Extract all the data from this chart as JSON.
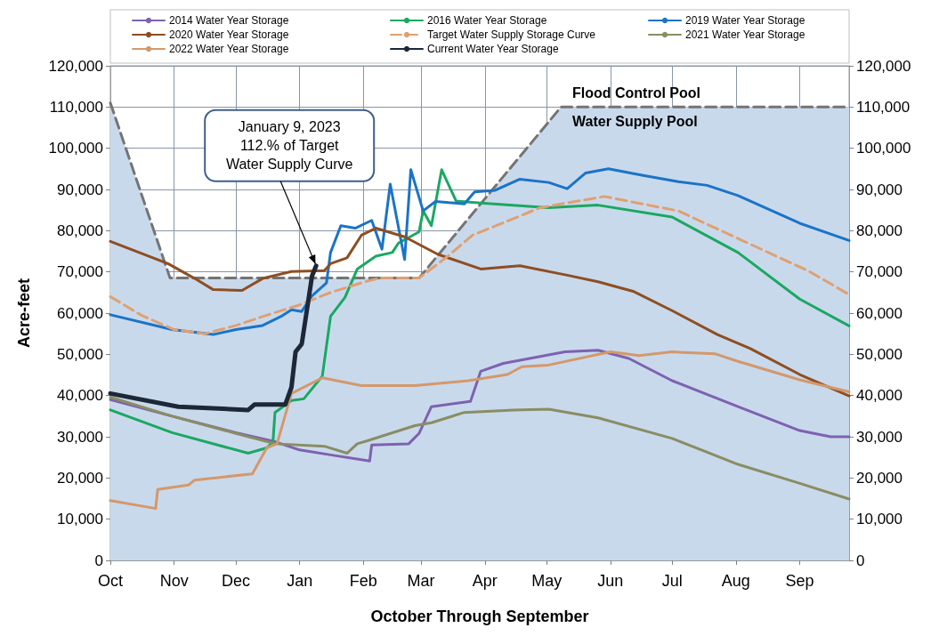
{
  "chart_data": {
    "type": "line",
    "xlabel": "October Through September",
    "ylabel": "Acre-feet",
    "xlim": [
      "2022-10-01",
      "2023-09-25"
    ],
    "xticks": [
      {
        "value": "2022-10-01",
        "label": "Oct"
      },
      {
        "value": "2022-11-01",
        "label": "Nov"
      },
      {
        "value": "2022-12-01",
        "label": "Dec"
      },
      {
        "value": "2023-01-01",
        "label": "Jan"
      },
      {
        "value": "2023-02-01",
        "label": "Feb"
      },
      {
        "value": "2023-03-01",
        "label": "Mar"
      },
      {
        "value": "2023-04-01",
        "label": "Apr"
      },
      {
        "value": "2023-05-01",
        "label": "May"
      },
      {
        "value": "2023-06-01",
        "label": "Jun"
      },
      {
        "value": "2023-07-01",
        "label": "Jul"
      },
      {
        "value": "2023-08-01",
        "label": "Aug"
      },
      {
        "value": "2023-09-01",
        "label": "Sep"
      }
    ],
    "ylim": [
      0,
      120000
    ],
    "yticks": [
      {
        "value": 0,
        "label": "0"
      },
      {
        "value": 10000,
        "label": "10,000"
      },
      {
        "value": 20000,
        "label": "20,000"
      },
      {
        "value": 30000,
        "label": "30,000"
      },
      {
        "value": 40000,
        "label": "40,000"
      },
      {
        "value": 50000,
        "label": "50,000"
      },
      {
        "value": 60000,
        "label": "60,000"
      },
      {
        "value": 70000,
        "label": "70,000"
      },
      {
        "value": 80000,
        "label": "80,000"
      },
      {
        "value": 90000,
        "label": "90,000"
      },
      {
        "value": 100000,
        "label": "100,000"
      },
      {
        "value": 110000,
        "label": "110,000"
      },
      {
        "value": 120000,
        "label": "120,000"
      }
    ],
    "y2lim": [
      0,
      120000
    ],
    "y2ticks": [
      {
        "value": 0,
        "label": "0"
      },
      {
        "value": 10000,
        "label": "10,000"
      },
      {
        "value": 20000,
        "label": "20,000"
      },
      {
        "value": 30000,
        "label": "30,000"
      },
      {
        "value": 40000,
        "label": "40,000"
      },
      {
        "value": 50000,
        "label": "50,000"
      },
      {
        "value": 60000,
        "label": "60,000"
      },
      {
        "value": 70000,
        "label": "70,000"
      },
      {
        "value": 80000,
        "label": "80,000"
      },
      {
        "value": 90000,
        "label": "90,000"
      },
      {
        "value": 100000,
        "label": "100,000"
      },
      {
        "value": 110000,
        "label": "110,000"
      },
      {
        "value": 120000,
        "label": "120,000"
      }
    ],
    "grid": true,
    "legend": "top",
    "marker": "none",
    "line_style": "solid",
    "series": [
      {
        "name": "2014 Water Year Storage",
        "color": "#7d62b0",
        "x": [
          "2022-10-01",
          "2022-10-31",
          "2022-12-01",
          "2022-12-20",
          "2023-01-01",
          "2023-01-16",
          "2023-02-04",
          "2023-02-05",
          "2023-02-23",
          "2023-02-28",
          "2023-03-06",
          "2023-03-25",
          "2023-03-30",
          "2023-04-10",
          "2023-05-10",
          "2023-05-26",
          "2023-06-10",
          "2023-07-01",
          "2023-08-02",
          "2023-09-01",
          "2023-09-16",
          "2023-09-25"
        ],
        "values": [
          39000,
          35000,
          31000,
          28800,
          26800,
          25600,
          24100,
          28000,
          28300,
          30800,
          37300,
          38600,
          45900,
          47800,
          50600,
          51000,
          49000,
          43600,
          37300,
          31500,
          30000,
          30000
        ]
      },
      {
        "name": "2016 Water Year Storage",
        "color": "#1aa862",
        "x": [
          "2022-10-01",
          "2022-10-31",
          "2022-12-07",
          "2022-12-16",
          "2022-12-19",
          "2022-12-20",
          "2022-12-28",
          "2023-01-03",
          "2023-01-12",
          "2023-01-16",
          "2023-01-23",
          "2023-01-29",
          "2023-02-07",
          "2023-02-15",
          "2023-02-18",
          "2023-02-28",
          "2023-03-02",
          "2023-03-06",
          "2023-03-11",
          "2023-03-18",
          "2023-03-30",
          "2023-05-02",
          "2023-05-26",
          "2023-07-01",
          "2023-08-02",
          "2023-09-01",
          "2023-09-25"
        ],
        "values": [
          36500,
          31000,
          26000,
          27300,
          28700,
          35900,
          38800,
          39200,
          44700,
          59200,
          63800,
          70700,
          73800,
          74700,
          77000,
          79700,
          84800,
          81200,
          94800,
          87200,
          86700,
          85600,
          86200,
          83300,
          74700,
          63400,
          56900
        ]
      },
      {
        "name": "2019 Water Year Storage",
        "color": "#1a74c6",
        "x": [
          "2022-10-01",
          "2022-10-31",
          "2022-11-20",
          "2022-12-01",
          "2022-12-14",
          "2022-12-23",
          "2022-12-28",
          "2023-01-02",
          "2023-01-07",
          "2023-01-14",
          "2023-01-16",
          "2023-01-21",
          "2023-01-28",
          "2023-02-05",
          "2023-02-10",
          "2023-02-14",
          "2023-02-21",
          "2023-02-24",
          "2023-03-02",
          "2023-03-08",
          "2023-03-22",
          "2023-03-27",
          "2023-04-06",
          "2023-04-18",
          "2023-05-02",
          "2023-05-11",
          "2023-05-20",
          "2023-05-31",
          "2023-06-17",
          "2023-07-04",
          "2023-07-18",
          "2023-08-02",
          "2023-09-01",
          "2023-09-25"
        ],
        "values": [
          59600,
          56000,
          54800,
          56000,
          57000,
          59200,
          60800,
          60400,
          64200,
          67300,
          74700,
          81200,
          80600,
          82500,
          75500,
          91300,
          73000,
          94800,
          84800,
          87100,
          86500,
          89400,
          89800,
          92500,
          91700,
          90200,
          94000,
          95000,
          93400,
          91900,
          91000,
          88500,
          81800,
          77600
        ]
      },
      {
        "name": "2020 Water Year Storage",
        "color": "#8e4e22",
        "x": [
          "2022-10-01",
          "2022-10-29",
          "2022-11-11",
          "2022-11-20",
          "2022-12-04",
          "2022-12-14",
          "2022-12-28",
          "2023-01-13",
          "2023-01-16",
          "2023-01-24",
          "2023-01-31",
          "2023-02-07",
          "2023-02-21",
          "2023-03-09",
          "2023-03-30",
          "2023-04-18",
          "2023-05-11",
          "2023-05-26",
          "2023-06-12",
          "2023-07-01",
          "2023-07-23",
          "2023-08-08",
          "2023-09-01",
          "2023-09-25"
        ],
        "values": [
          77400,
          72000,
          68400,
          65700,
          65500,
          68400,
          70100,
          70300,
          72000,
          73400,
          78900,
          80600,
          78500,
          74300,
          70700,
          71500,
          69200,
          67600,
          65300,
          60600,
          54800,
          51400,
          45100,
          39900
        ]
      },
      {
        "name": "Target Water Supply Storage Curve",
        "color": "#e0a070",
        "line_style": "dashed",
        "x": [
          "2022-10-01",
          "2022-10-16",
          "2022-11-01",
          "2022-11-16",
          "2022-12-01",
          "2022-12-16",
          "2023-01-01",
          "2023-01-16",
          "2023-02-01",
          "2023-02-09",
          "2023-02-28",
          "2023-03-14",
          "2023-03-26",
          "2023-04-28",
          "2023-05-29",
          "2023-07-04",
          "2023-08-05",
          "2023-09-05",
          "2023-09-25"
        ],
        "values": [
          64000,
          59500,
          56000,
          55000,
          57000,
          59500,
          62000,
          65000,
          67500,
          68500,
          68500,
          73800,
          78900,
          85600,
          88300,
          84800,
          77400,
          70300,
          64500
        ]
      },
      {
        "name": "2021 Water Year Storage",
        "color": "#8a8d62",
        "x": [
          "2022-10-01",
          "2022-10-31",
          "2022-12-01",
          "2022-12-20",
          "2023-01-13",
          "2023-01-24",
          "2023-01-29",
          "2023-02-04",
          "2023-02-09",
          "2023-02-26",
          "2023-03-06",
          "2023-03-22",
          "2023-04-15",
          "2023-05-02",
          "2023-05-26",
          "2023-07-01",
          "2023-08-02",
          "2023-09-01",
          "2023-09-25"
        ],
        "values": [
          39600,
          35000,
          30800,
          28300,
          27700,
          26000,
          28300,
          29200,
          30000,
          32700,
          33400,
          35900,
          36500,
          36700,
          34600,
          29600,
          23300,
          18700,
          14900
        ]
      },
      {
        "name": "2022 Water Year Storage",
        "color": "#d4986a",
        "x": [
          "2022-10-01",
          "2022-10-23",
          "2022-10-24",
          "2022-11-08",
          "2022-11-11",
          "2022-12-09",
          "2022-12-16",
          "2022-12-21",
          "2022-12-28",
          "2023-01-12",
          "2023-01-31",
          "2023-02-26",
          "2023-03-24",
          "2023-04-12",
          "2023-04-19",
          "2023-05-02",
          "2023-06-01",
          "2023-06-15",
          "2023-07-01",
          "2023-07-22",
          "2023-08-02",
          "2023-09-01",
          "2023-09-25"
        ],
        "values": [
          14500,
          12600,
          17200,
          18300,
          19500,
          21000,
          27300,
          28300,
          40500,
          44300,
          42400,
          42400,
          43600,
          45100,
          47000,
          47400,
          50600,
          49700,
          50600,
          50100,
          48300,
          43800,
          40900
        ]
      },
      {
        "name": "Current Water Year Storage",
        "color": "#1c2838",
        "x": [
          "2022-10-01",
          "2022-11-03",
          "2022-12-07",
          "2022-12-10",
          "2022-12-25",
          "2022-12-28",
          "2022-12-30",
          "2023-01-02",
          "2023-01-07",
          "2023-01-09"
        ],
        "values": [
          40500,
          37300,
          36500,
          37800,
          37800,
          42000,
          50600,
          52500,
          69000,
          71500
        ]
      },
      {
        "type": "area",
        "color": "#747474",
        "line_style": "dashed",
        "x": [
          "2022-10-01",
          "2022-10-30",
          "2023-02-28",
          "2023-05-08",
          "2023-09-25"
        ],
        "values": [
          111000,
          68500,
          68500,
          110000,
          110000
        ]
      }
    ],
    "annotations": [
      {
        "text": "January 9, 2023\n112.% of Target\nWater Supply Curve",
        "x": "2023-01-09",
        "y": 71500
      },
      "Flood Control Pool",
      "Water Supply Pool"
    ]
  }
}
